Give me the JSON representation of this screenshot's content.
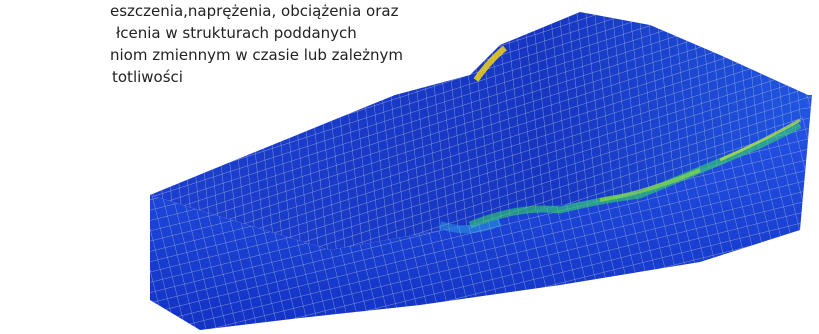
{
  "caption": {
    "lines": [
      "eszczenia,naprężenia, obciążenia oraz",
      "łcenia w strukturach poddanych",
      "niom zmiennym w czasie lub zależnym",
      "totliwości"
    ]
  }
}
